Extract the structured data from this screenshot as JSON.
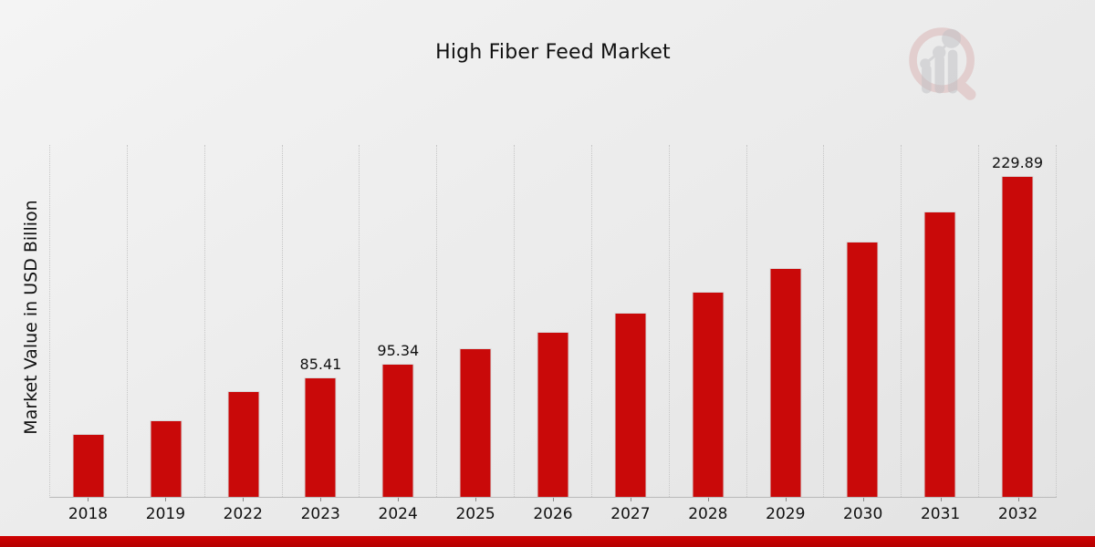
{
  "page": {
    "title": "High Fiber Feed Market"
  },
  "chart_data": {
    "type": "bar",
    "title": "High Fiber Feed Market",
    "xlabel": "",
    "ylabel": "Market Value in USD Billion",
    "categories": [
      "2018",
      "2019",
      "2022",
      "2023",
      "2024",
      "2025",
      "2026",
      "2027",
      "2028",
      "2029",
      "2030",
      "2031",
      "2032"
    ],
    "values": [
      44.9,
      54.6,
      76.1,
      85.41,
      95.34,
      106.6,
      118.3,
      132.0,
      146.9,
      163.8,
      183.3,
      204.8,
      229.89
    ],
    "data_labels": {
      "2023": "85.41",
      "2024": "95.34",
      "2032": "229.89"
    },
    "ylim": [
      0,
      253
    ],
    "grid": "vertical-dotted-between-categories",
    "legend_position": "none",
    "bar_color": "#c90909"
  },
  "colors": {
    "bar": "#c90909",
    "bar_edge": "#d9d9d9",
    "bottom_strip": "#c00000",
    "gridline": "#c6c6c6",
    "axis_line": "#b9b9b9",
    "text": "#111111",
    "watermark_ring": "#cf8c8c",
    "watermark_bars": "#b9b9bd"
  },
  "icons": {
    "watermark": "magnifier-bar-chart-logo"
  }
}
